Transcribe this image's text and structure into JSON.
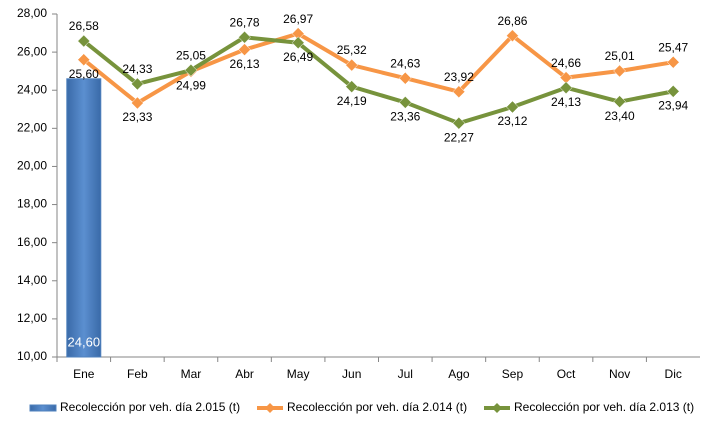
{
  "chart_data": {
    "type": "combo",
    "categories": [
      "Ene",
      "Feb",
      "Mar",
      "Abr",
      "May",
      "Jun",
      "Jul",
      "Ago",
      "Sep",
      "Oct",
      "Nov",
      "Dic"
    ],
    "series": [
      {
        "name": "Recolección por veh. día 2.015 (t)",
        "type": "bar",
        "color": "#4f81bd",
        "values": [
          24.6,
          null,
          null,
          null,
          null,
          null,
          null,
          null,
          null,
          null,
          null,
          null
        ],
        "value_labels": [
          "24,60",
          null,
          null,
          null,
          null,
          null,
          null,
          null,
          null,
          null,
          null,
          null
        ]
      },
      {
        "name": "Recolección por veh. día 2.014 (t)",
        "type": "line",
        "color": "#f79646",
        "values": [
          25.6,
          23.33,
          24.99,
          26.13,
          26.97,
          25.32,
          24.63,
          23.92,
          26.86,
          24.66,
          25.01,
          25.47
        ],
        "value_labels": [
          "25,60",
          "23,33",
          "24,99",
          "26,13",
          "26,97",
          "25,32",
          "24,63",
          "23,92",
          "26,86",
          "24,66",
          "25,01",
          "25,47"
        ]
      },
      {
        "name": "Recolección por veh. día 2.013 (t)",
        "type": "line",
        "color": "#77933c",
        "values": [
          26.58,
          24.33,
          25.05,
          26.78,
          26.49,
          24.19,
          23.36,
          22.27,
          23.12,
          24.13,
          23.4,
          23.94
        ],
        "value_labels": [
          "26,58",
          "24,33",
          "25,05",
          "26,78",
          "26,49",
          "24,19",
          "23,36",
          "22,27",
          "23,12",
          "24,13",
          "23,40",
          "23,94"
        ]
      }
    ],
    "ylim": [
      10,
      28
    ],
    "yticks": [
      {
        "value": 10,
        "label": "10,00"
      },
      {
        "value": 12,
        "label": "12,00"
      },
      {
        "value": 14,
        "label": "14,00"
      },
      {
        "value": 16,
        "label": "16,00"
      },
      {
        "value": 18,
        "label": "18,00"
      },
      {
        "value": 20,
        "label": "20,00"
      },
      {
        "value": 22,
        "label": "22,00"
      },
      {
        "value": 24,
        "label": "24,00"
      },
      {
        "value": 26,
        "label": "26,00"
      },
      {
        "value": 28,
        "label": "28,00"
      }
    ],
    "grid": false
  }
}
